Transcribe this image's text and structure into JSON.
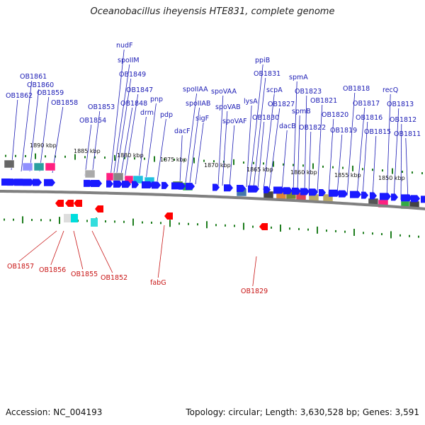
{
  "title": "Oceanobacillus iheyensis HTE831, complete genome",
  "footer": {
    "accession": "Accession: NC_004193",
    "summary": "Topology: circular; Length: 3,630,528 bp; Genes: 3,591"
  },
  "colors": {
    "forward_gene": "#1a1aff",
    "reverse_gene": "#ff0000",
    "forward_label": "#1a1ab4",
    "reverse_label": "#c81414",
    "backbone": "#808080",
    "tick": "#1e7d1e"
  },
  "kbp_ticks": [
    "1890 kbp",
    "1885 kbp",
    "1880 kbp",
    "1875 kbp",
    "1870 kbp",
    "1865 kbp",
    "1860 kbp",
    "1855 kbp",
    "1850 kbp"
  ],
  "forward_labels": [
    "OB1862",
    "OB1861",
    "OB1860",
    "OB1859",
    "OB1858",
    "OB1854",
    "OB1853",
    "nudF",
    "spoIIM",
    "OB1849",
    "OB1848",
    "OB1847",
    "drm",
    "pnp",
    "pdp",
    "dacF",
    "spoIIAA",
    "spoIIAB",
    "sigF",
    "spoVAA",
    "spoVAB",
    "spoVAF",
    "lysA",
    "ppiB",
    "OB1831",
    "OB1830",
    "scpA",
    "OB1827",
    "dacB",
    "spmA",
    "spmB",
    "OB1823",
    "OB1822",
    "OB1821",
    "OB1820",
    "OB1819",
    "OB1818",
    "OB1817",
    "OB1816",
    "OB1815",
    "recQ",
    "OB1813",
    "OB1812",
    "OB1811"
  ],
  "reverse_labels": [
    "OB1857",
    "OB1856",
    "OB1855",
    "OB1852",
    "fabG",
    "OB1829"
  ]
}
